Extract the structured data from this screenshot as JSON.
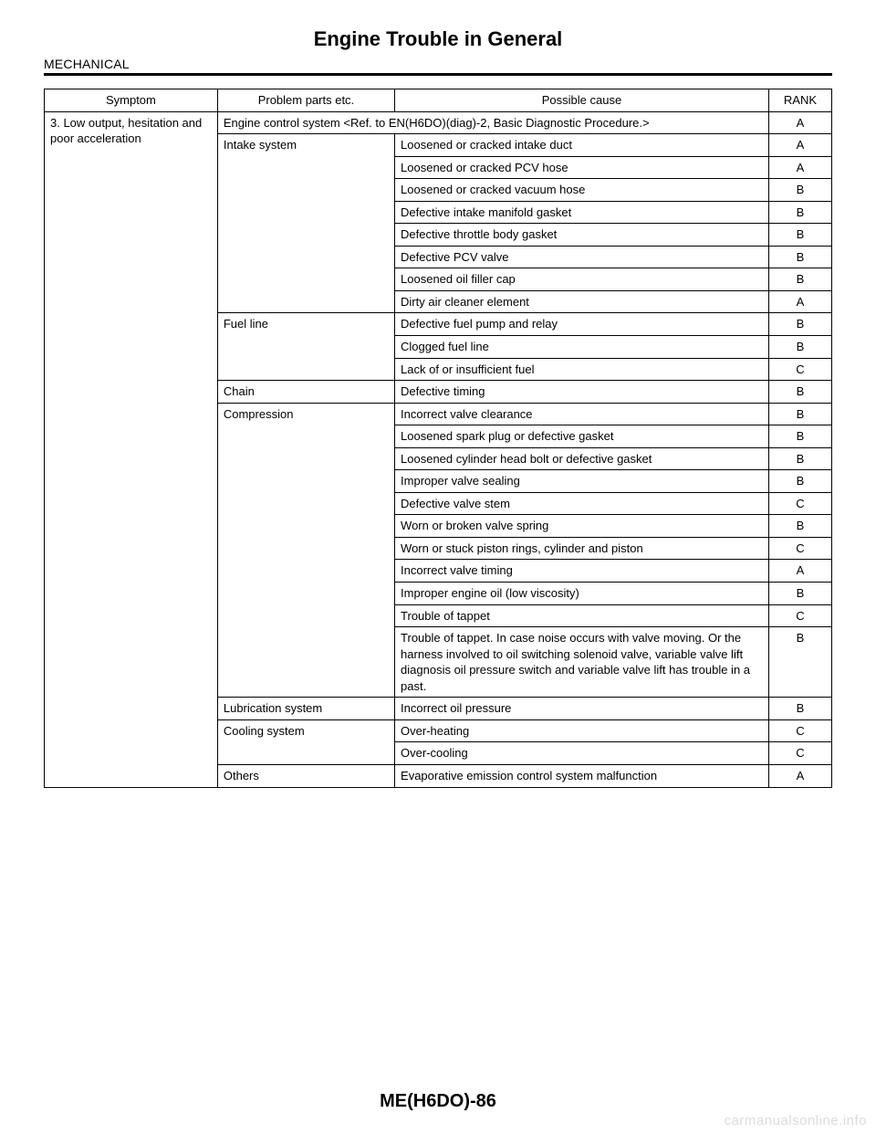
{
  "title": "Engine Trouble in General",
  "section": "MECHANICAL",
  "page_number": "ME(H6DO)-86",
  "watermark": "carmanualsonline.info",
  "table": {
    "headers": {
      "symptom": "Symptom",
      "parts": "Problem parts etc.",
      "cause": "Possible cause",
      "rank": "RANK"
    },
    "symptom": "3. Low output, hesitation and poor acceleration",
    "groups": [
      {
        "parts": "Engine control system <Ref. to EN(H6DO)(diag)-2, Basic Diagnostic Procedure.>",
        "cause_span": true,
        "rank": "A"
      },
      {
        "parts": "Intake system",
        "rows": [
          {
            "cause": "Loosened or cracked intake duct",
            "rank": "A"
          },
          {
            "cause": "Loosened or cracked PCV hose",
            "rank": "A"
          },
          {
            "cause": "Loosened or cracked vacuum hose",
            "rank": "B"
          },
          {
            "cause": "Defective intake manifold gasket",
            "rank": "B"
          },
          {
            "cause": "Defective throttle body gasket",
            "rank": "B"
          },
          {
            "cause": "Defective PCV valve",
            "rank": "B"
          },
          {
            "cause": "Loosened oil filler cap",
            "rank": "B"
          },
          {
            "cause": "Dirty air cleaner element",
            "rank": "A"
          }
        ]
      },
      {
        "parts": "Fuel line",
        "rows": [
          {
            "cause": "Defective fuel pump and relay",
            "rank": "B"
          },
          {
            "cause": "Clogged fuel line",
            "rank": "B"
          },
          {
            "cause": "Lack of or insufficient fuel",
            "rank": "C"
          }
        ]
      },
      {
        "parts": "Chain",
        "rows": [
          {
            "cause": "Defective timing",
            "rank": "B"
          }
        ]
      },
      {
        "parts": "Compression",
        "rows": [
          {
            "cause": "Incorrect valve clearance",
            "rank": "B"
          },
          {
            "cause": "Loosened spark plug or defective gasket",
            "rank": "B"
          },
          {
            "cause": "Loosened cylinder head bolt or defective gasket",
            "rank": "B"
          },
          {
            "cause": "Improper valve sealing",
            "rank": "B"
          },
          {
            "cause": "Defective valve stem",
            "rank": "C"
          },
          {
            "cause": "Worn or broken valve spring",
            "rank": "B"
          },
          {
            "cause": "Worn or stuck piston rings, cylinder and piston",
            "rank": "C"
          },
          {
            "cause": "Incorrect valve timing",
            "rank": "A"
          },
          {
            "cause": "Improper engine oil (low viscosity)",
            "rank": "B"
          },
          {
            "cause": "Trouble of tappet",
            "rank": "C"
          },
          {
            "cause": "Trouble of tappet. In case noise occurs with valve moving. Or the harness involved to oil switching solenoid valve, variable valve lift diagnosis oil pressure switch and variable valve lift has trouble in a past.",
            "rank": "B"
          }
        ]
      },
      {
        "parts": "Lubrication system",
        "rows": [
          {
            "cause": "Incorrect oil pressure",
            "rank": "B"
          }
        ]
      },
      {
        "parts": "Cooling system",
        "rows": [
          {
            "cause": "Over-heating",
            "rank": "C"
          },
          {
            "cause": "Over-cooling",
            "rank": "C"
          }
        ]
      },
      {
        "parts": "Others",
        "rows": [
          {
            "cause": "Evaporative emission control system malfunction",
            "rank": "A"
          }
        ]
      }
    ]
  }
}
